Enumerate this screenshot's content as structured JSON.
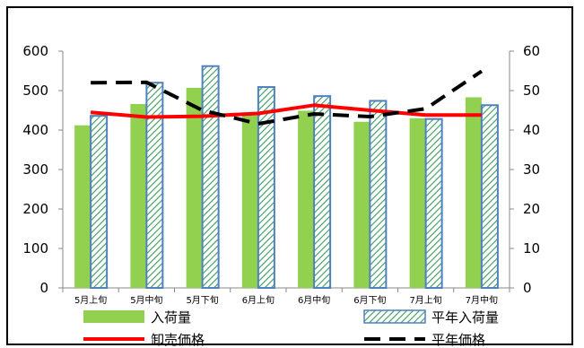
{
  "chart_data": {
    "type": "bar",
    "categories": [
      "5月上旬",
      "5月中旬",
      "5月下旬",
      "6月上旬",
      "6月中旬",
      "6月下旬",
      "7月上旬",
      "7月中旬"
    ],
    "left_axis": {
      "min": 0,
      "max": 600,
      "ticks": [
        0,
        100,
        200,
        300,
        400,
        500,
        600
      ]
    },
    "right_axis": {
      "min": 0,
      "max": 60,
      "ticks": [
        0,
        10,
        20,
        30,
        40,
        50,
        60
      ]
    },
    "series": [
      {
        "name": "入荷量",
        "type": "bar",
        "axis": "left",
        "color": "#92d050",
        "values": [
          412,
          466,
          507,
          437,
          449,
          421,
          430,
          483
        ]
      },
      {
        "name": "平年入荷量",
        "type": "bar",
        "axis": "left",
        "color": "#2e8b57",
        "border": "#4f81bd",
        "pattern": "diagonal-hatch",
        "values": [
          436,
          520,
          562,
          509,
          486,
          474,
          428,
          463
        ]
      },
      {
        "name": "卸売価格",
        "type": "line",
        "axis": "right",
        "color": "#ff0000",
        "style": "solid",
        "values": [
          44.5,
          43.3,
          43.5,
          44.2,
          46.3,
          45.0,
          43.8,
          43.8
        ]
      },
      {
        "name": "平年価格",
        "type": "line",
        "axis": "right",
        "color": "#000000",
        "style": "dashed",
        "values": [
          52.0,
          52.1,
          45.0,
          41.6,
          44.1,
          43.4,
          45.4,
          54.9
        ]
      }
    ],
    "title": "",
    "xlabel": "",
    "ylabel": "",
    "grid": false,
    "legend_position": "bottom"
  }
}
